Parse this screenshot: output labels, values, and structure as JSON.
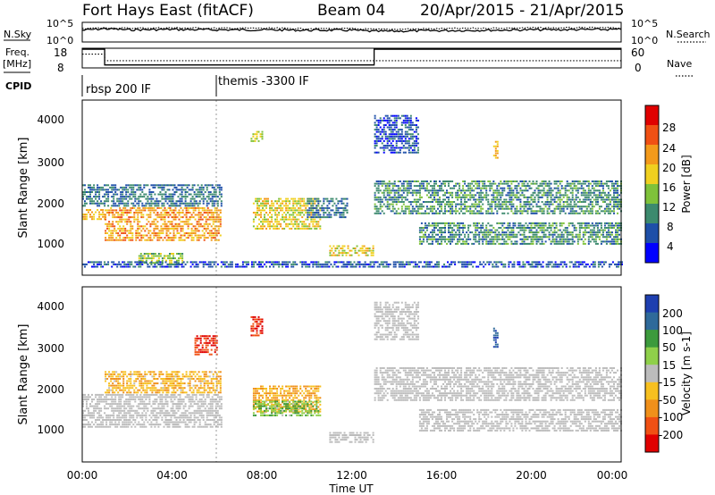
{
  "header": {
    "title": "Fort Hays East (fitACF)",
    "beam": "Beam 04",
    "date_range": "20/Apr/2015 - 21/Apr/2015"
  },
  "noise_panel": {
    "left_label": "N.Sky",
    "left_ticks": [
      "10^5",
      "10^0"
    ],
    "right_ticks": [
      "10^5",
      "10^0"
    ],
    "right_label": "N.Search"
  },
  "freq_panel": {
    "left_label_1": "Freq.",
    "left_label_2": "[MHz]",
    "left_ticks": [
      "18",
      "8"
    ],
    "right_ticks": [
      "60",
      "0"
    ],
    "right_label": "Nave"
  },
  "cpid": {
    "label": "CPID",
    "modes": [
      {
        "text": "rbsp 200 IF",
        "start_hour": 0
      },
      {
        "text": "themis -3300 IF",
        "start_hour": 6
      }
    ]
  },
  "power_panel": {
    "ylabel": "Slant Range [km]",
    "yticks": [
      "4000",
      "3000",
      "2000",
      "1000"
    ],
    "colorbar_label": "Power [dB]",
    "colorbar_ticks": [
      "28",
      "24",
      "20",
      "16",
      "12",
      "8",
      "4"
    ]
  },
  "velocity_panel": {
    "ylabel": "Slant Range [km]",
    "yticks": [
      "4000",
      "3000",
      "2000",
      "1000"
    ],
    "colorbar_label": "Velocity [m s-1]",
    "colorbar_ticks": [
      "200",
      "100",
      "50",
      "15",
      "-15",
      "-50",
      "-100",
      "-200"
    ]
  },
  "xaxis": {
    "ticks": [
      "00:00",
      "04:00",
      "08:00",
      "12:00",
      "16:00",
      "20:00",
      "00:00"
    ],
    "label": "Time UT"
  },
  "colors": {
    "power_scale": [
      "#0000ff",
      "#1e4fa8",
      "#3c8a6e",
      "#7fc23a",
      "#f0d020",
      "#f39a1b",
      "#f05014",
      "#e00000"
    ],
    "velocity_scale": [
      "#1e3fb0",
      "#2f6a9a",
      "#3c9a3c",
      "#8fd04a",
      "#bcbcbc",
      "#f7c020",
      "#f0901a",
      "#f05014",
      "#e00000"
    ],
    "ground_scatter": "#bcbcbc"
  },
  "chart_data": [
    {
      "type": "line",
      "title": "Noise (N.Sky / N.Search)",
      "x_range_hours": [
        0,
        24
      ],
      "series": [
        {
          "name": "N.Sky",
          "x": [
            0,
            1,
            2,
            4,
            6,
            8,
            10,
            12,
            13,
            16,
            20,
            24
          ],
          "values": [
            3.0,
            3.4,
            3.1,
            3.2,
            3.1,
            3.1,
            3.0,
            3.0,
            2.7,
            2.9,
            3.1,
            3.2
          ]
        },
        {
          "name": "N.Search",
          "x": [
            0,
            1,
            2,
            4,
            6,
            8,
            10,
            12,
            13,
            16,
            20,
            24
          ],
          "values": [
            3.4,
            3.6,
            3.5,
            3.6,
            3.5,
            3.5,
            3.4,
            3.4,
            3.2,
            3.4,
            3.6,
            3.6
          ]
        }
      ]
    },
    {
      "type": "line",
      "title": "Frequency / Nave",
      "x_range_hours": [
        0,
        24
      ],
      "series": [
        {
          "name": "Freq.",
          "x": [
            0,
            1.0,
            1.0,
            13.0,
            13.0,
            24
          ],
          "values": [
            17.5,
            17.5,
            9.5,
            9.5,
            17.5,
            17.5
          ]
        },
        {
          "name": "Nave",
          "x": [
            0,
            1.0,
            1.0,
            24
          ],
          "values": [
            42,
            42,
            22,
            22
          ]
        }
      ]
    },
    {
      "type": "heatmap",
      "title": "Power [dB]",
      "xlabel": "Time UT",
      "ylabel": "Slant Range [km]",
      "x_range_hours": [
        0,
        24
      ],
      "y_range_km": [
        0,
        4600
      ],
      "features": [
        {
          "t0": 0.0,
          "t1": 1.0,
          "r0": 1450,
          "r1": 1750,
          "power": 20
        },
        {
          "t0": 1.0,
          "t1": 6.2,
          "r0": 900,
          "r1": 1800,
          "power": 22
        },
        {
          "t0": 0.0,
          "t1": 6.2,
          "r0": 1800,
          "r1": 2400,
          "power": 8
        },
        {
          "t0": 2.5,
          "t1": 4.5,
          "r0": 300,
          "r1": 600,
          "power": 14
        },
        {
          "t0": 7.6,
          "t1": 10.6,
          "r0": 1200,
          "r1": 2000,
          "power": 18
        },
        {
          "t0": 10.0,
          "t1": 11.8,
          "r0": 1500,
          "r1": 2000,
          "power": 8
        },
        {
          "t0": 7.5,
          "t1": 8.0,
          "r0": 3500,
          "r1": 3800,
          "power": 16
        },
        {
          "t0": 11.0,
          "t1": 13.0,
          "r0": 500,
          "r1": 800,
          "power": 18
        },
        {
          "t0": 13.0,
          "t1": 24.0,
          "r0": 1600,
          "r1": 2500,
          "power": 10
        },
        {
          "t0": 13.0,
          "t1": 15.0,
          "r0": 3200,
          "r1": 4200,
          "power": 6
        },
        {
          "t0": 15.0,
          "t1": 24.0,
          "r0": 800,
          "r1": 1400,
          "power": 10
        },
        {
          "t0": 18.3,
          "t1": 18.5,
          "r0": 3000,
          "r1": 3500,
          "power": 20
        },
        {
          "t0": 0.0,
          "t1": 24.0,
          "r0": 200,
          "r1": 350,
          "power": 6
        }
      ]
    },
    {
      "type": "heatmap",
      "title": "Velocity [m s-1]",
      "xlabel": "Time UT",
      "ylabel": "Slant Range [km]",
      "x_range_hours": [
        0,
        24
      ],
      "y_range_km": [
        0,
        4600
      ],
      "features": [
        {
          "t0": 0.0,
          "t1": 6.2,
          "r0": 900,
          "r1": 1800,
          "velocity": 0,
          "ground": true
        },
        {
          "t0": 1.0,
          "t1": 6.2,
          "r0": 1800,
          "r1": 2400,
          "velocity": -40
        },
        {
          "t0": 7.6,
          "t1": 10.6,
          "r0": 1300,
          "r1": 2000,
          "velocity": -50
        },
        {
          "t0": 7.6,
          "t1": 10.6,
          "r0": 1200,
          "r1": 1600,
          "velocity": 40
        },
        {
          "t0": 5.0,
          "t1": 6.0,
          "r0": 2800,
          "r1": 3300,
          "velocity": -200
        },
        {
          "t0": 7.5,
          "t1": 8.0,
          "r0": 3300,
          "r1": 3800,
          "velocity": -200
        },
        {
          "t0": 11.0,
          "t1": 13.0,
          "r0": 500,
          "r1": 800,
          "velocity": 0,
          "ground": true
        },
        {
          "t0": 13.0,
          "t1": 24.0,
          "r0": 1600,
          "r1": 2500,
          "velocity": 0,
          "ground": true
        },
        {
          "t0": 13.0,
          "t1": 15.0,
          "r0": 3200,
          "r1": 4200,
          "velocity": 0,
          "ground": true
        },
        {
          "t0": 15.0,
          "t1": 24.0,
          "r0": 800,
          "r1": 1400,
          "velocity": 0,
          "ground": true
        },
        {
          "t0": 18.3,
          "t1": 18.5,
          "r0": 3000,
          "r1": 3500,
          "velocity": 200
        }
      ]
    }
  ]
}
